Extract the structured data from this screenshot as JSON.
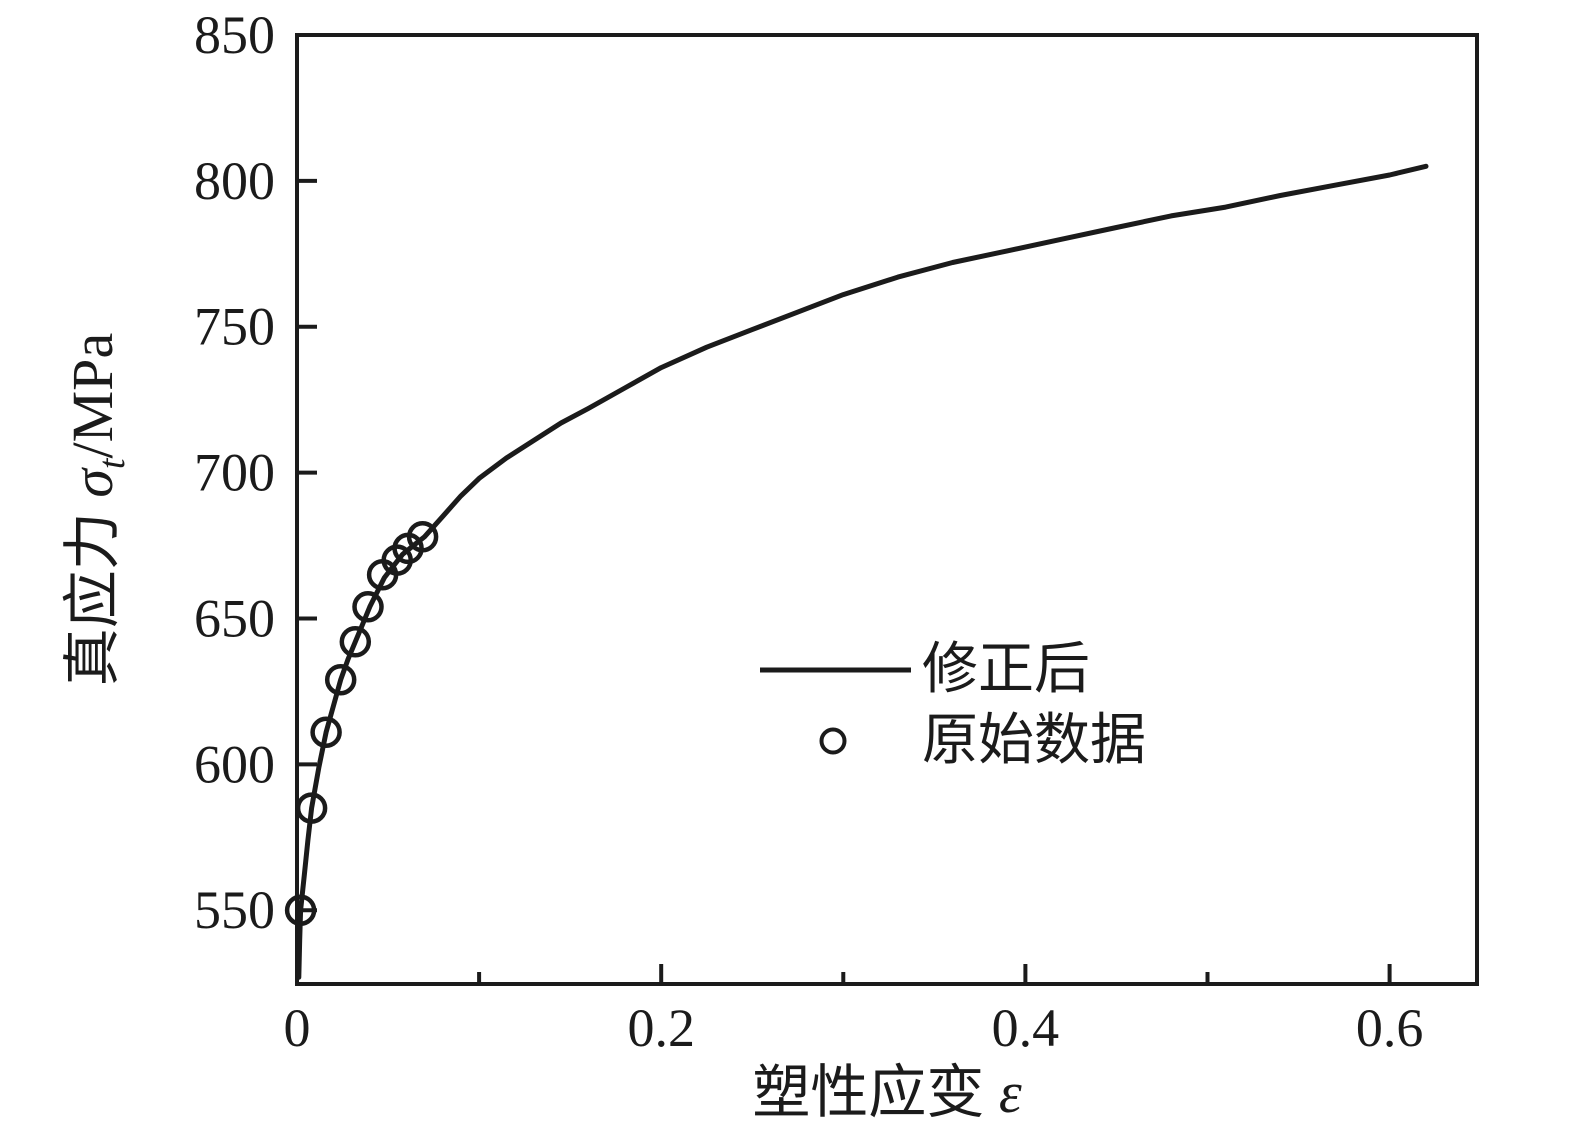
{
  "figure": {
    "background": "#ffffff",
    "ink_color": "#1b1b1b"
  },
  "chart_data": {
    "type": "line",
    "title": "",
    "xlabel": "塑性应变 ε",
    "ylabel": "真应力 σt/MPa",
    "xlabel_parts": {
      "prefix": "塑性应变 ",
      "symbol": "ε"
    },
    "ylabel_parts": {
      "prefix": "真应力 ",
      "symbol": "σ",
      "subscript": "t",
      "suffix": "/MPa"
    },
    "xlim": [
      0,
      0.648
    ],
    "ylim": [
      524.7,
      850
    ],
    "x_major_ticks": [
      0,
      0.2,
      0.4,
      0.6
    ],
    "x_major_tick_labels": [
      "0",
      "0.2",
      "0.4",
      "0.6"
    ],
    "x_minor_ticks": [
      0.1,
      0.3,
      0.5
    ],
    "y_major_ticks": [
      550,
      600,
      650,
      700,
      750,
      800,
      850
    ],
    "y_major_tick_labels": [
      "550",
      "600",
      "650",
      "700",
      "750",
      "800",
      "850"
    ],
    "grid": false,
    "legend_position": "center-right",
    "series": [
      {
        "name": "修正后",
        "kind": "line",
        "color": "#1b1b1b",
        "points": [
          [
            0.001,
            527
          ],
          [
            0.0015,
            540
          ],
          [
            0.002,
            550
          ],
          [
            0.004,
            562
          ],
          [
            0.006,
            574
          ],
          [
            0.008,
            585
          ],
          [
            0.012,
            599
          ],
          [
            0.016,
            611
          ],
          [
            0.02,
            620
          ],
          [
            0.024,
            629
          ],
          [
            0.028,
            636
          ],
          [
            0.032,
            642
          ],
          [
            0.036,
            648
          ],
          [
            0.04,
            654
          ],
          [
            0.044,
            659
          ],
          [
            0.048,
            664
          ],
          [
            0.053,
            668
          ],
          [
            0.058,
            672
          ],
          [
            0.064,
            675
          ],
          [
            0.07,
            678
          ],
          [
            0.08,
            685
          ],
          [
            0.09,
            692
          ],
          [
            0.1,
            698
          ],
          [
            0.115,
            705
          ],
          [
            0.13,
            711
          ],
          [
            0.145,
            717
          ],
          [
            0.16,
            722
          ],
          [
            0.18,
            729
          ],
          [
            0.2,
            736
          ],
          [
            0.225,
            743
          ],
          [
            0.25,
            749
          ],
          [
            0.275,
            755
          ],
          [
            0.3,
            761
          ],
          [
            0.33,
            767
          ],
          [
            0.36,
            772
          ],
          [
            0.39,
            776
          ],
          [
            0.42,
            780
          ],
          [
            0.45,
            784
          ],
          [
            0.48,
            788
          ],
          [
            0.51,
            791
          ],
          [
            0.54,
            795
          ],
          [
            0.57,
            798.5
          ],
          [
            0.6,
            802
          ],
          [
            0.62,
            805
          ]
        ]
      },
      {
        "name": "原始数据",
        "kind": "scatter",
        "marker": "open-circle",
        "color": "#1b1b1b",
        "points": [
          [
            0.002,
            550
          ],
          [
            0.008,
            585
          ],
          [
            0.016,
            611
          ],
          [
            0.024,
            629
          ],
          [
            0.032,
            642
          ],
          [
            0.039,
            654
          ],
          [
            0.047,
            665
          ],
          [
            0.055,
            670
          ],
          [
            0.061,
            674
          ],
          [
            0.069,
            678
          ]
        ]
      }
    ]
  }
}
